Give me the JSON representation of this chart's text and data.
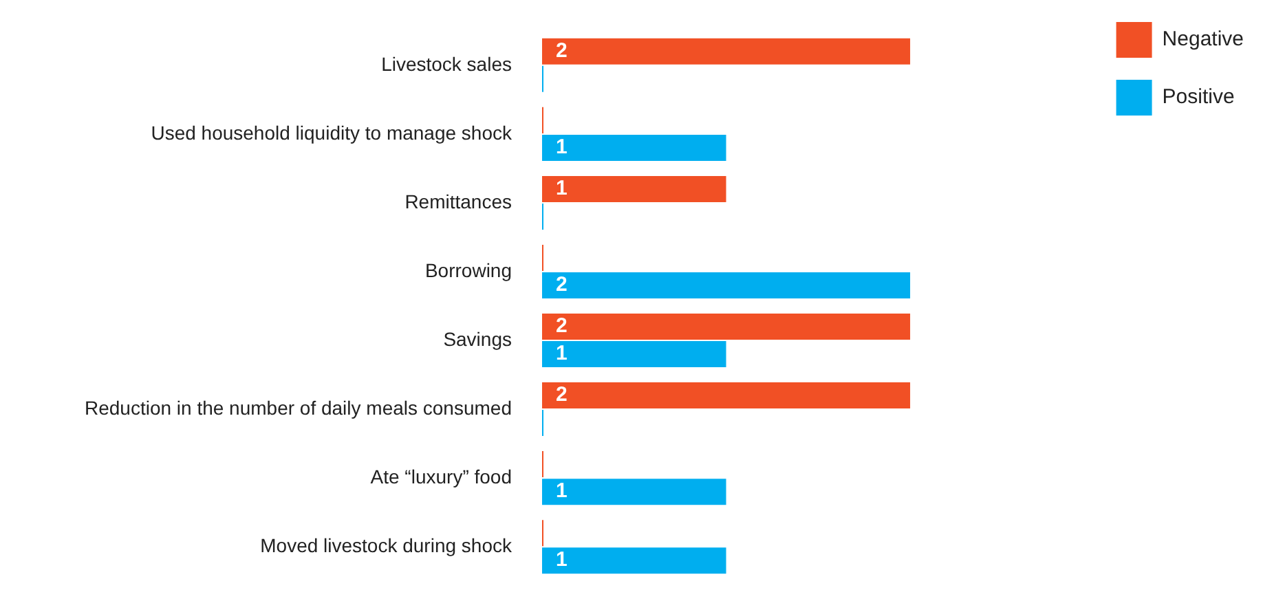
{
  "chart_data": {
    "type": "bar",
    "orientation": "horizontal",
    "categories": [
      "Livestock sales",
      "Used household liquidity to manage shock",
      "Remittances",
      "Borrowing",
      "Savings",
      "Reduction in the number of daily meals consumed",
      "Ate “luxury” food",
      "Moved livestock during shock"
    ],
    "series": [
      {
        "name": "Negative",
        "color": "#f15025",
        "values": [
          2,
          0,
          1,
          0,
          2,
          2,
          0,
          0
        ],
        "value_labels": [
          "2",
          null,
          "1",
          null,
          "2",
          "2",
          null,
          null
        ]
      },
      {
        "name": "Positive",
        "color": "#00aeef",
        "values": [
          0,
          1,
          0,
          2,
          1,
          0,
          1,
          1
        ],
        "value_labels": [
          null,
          "1",
          null,
          "2",
          "1",
          null,
          "1",
          "1"
        ]
      }
    ],
    "legend": "top right"
  }
}
